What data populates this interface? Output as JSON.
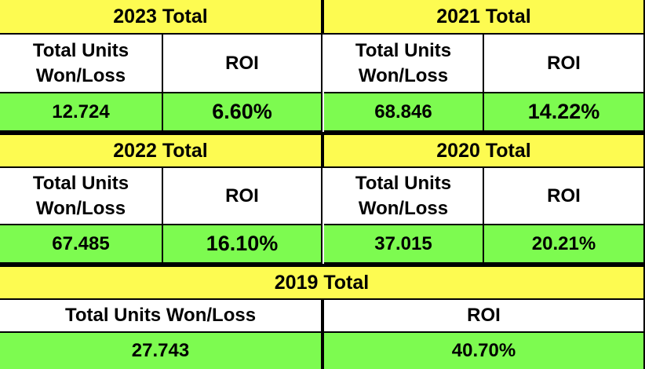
{
  "blocks": {
    "y2023": {
      "title": "2023 Total",
      "units_header": "Total Units Won/Loss",
      "roi_header": "ROI",
      "units": "12.724",
      "roi": "6.60%"
    },
    "y2021": {
      "title": "2021 Total",
      "units_header": "Total Units Won/Loss",
      "roi_header": "ROI",
      "units": "68.846",
      "roi": "14.22%"
    },
    "y2022": {
      "title": "2022 Total",
      "units_header": "Total Units Won/Loss",
      "roi_header": "ROI",
      "units": "67.485",
      "roi": "16.10%"
    },
    "y2020": {
      "title": "2020 Total",
      "units_header": "Total Units Won/Loss",
      "roi_header": "ROI",
      "units": "37.015",
      "roi": "20.21%"
    },
    "y2019": {
      "title": "2019 Total",
      "units_header": "Total Units Won/Loss",
      "roi_header": "ROI",
      "units": "27.743",
      "roi": "40.70%"
    }
  },
  "colors": {
    "header": "#fdfb51",
    "values": "#7dfb50",
    "labels": "#ffffff",
    "border": "#000000"
  }
}
